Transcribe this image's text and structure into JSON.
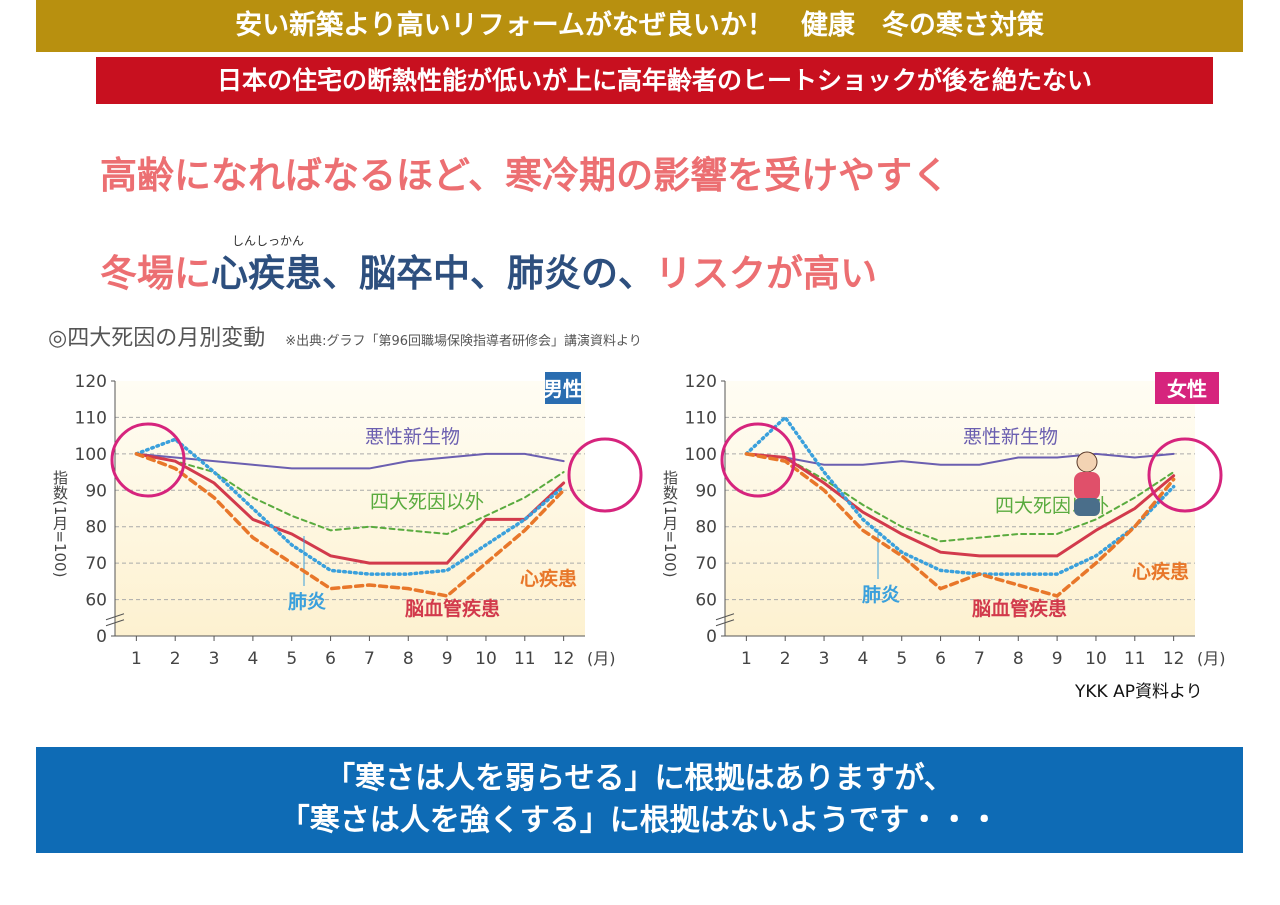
{
  "header": {
    "title": "安い新築より高いリフォームがなぜ良いか！　健康　冬の寒さ対策",
    "subtitle": "日本の住宅の断熱性能が低いが上に高年齢者のヒートショックが後を絶たない"
  },
  "headline": {
    "line1": "高齢になればなるほど、寒冷期の影響を受けやすく",
    "ruby": "しんしっかん",
    "line2": [
      "冬場に",
      "心疾患、脳卒中、肺炎の、",
      "リスクが高い"
    ],
    "line2_colors": [
      "#ec6f72",
      "#2d4f7e",
      "#ec6f72"
    ]
  },
  "caption": {
    "title": "◎四大死因の月別変動",
    "source": "※出典:グラフ「第96回職場保険指導者研修会」講演資料より"
  },
  "chart_data": [
    {
      "type": "line",
      "title": "男性",
      "title_color": "#2a6db0",
      "y_label": "指数(1月=100)",
      "x_unit": "(月)",
      "x": [
        1,
        2,
        3,
        4,
        5,
        6,
        7,
        8,
        9,
        10,
        11,
        12
      ],
      "xlim": [
        0.45,
        12.55
      ],
      "xticks": [
        1,
        2,
        3,
        4,
        5,
        6,
        7,
        8,
        9,
        10,
        11,
        12
      ],
      "ylim": [
        0,
        120
      ],
      "yticks": [
        0,
        60,
        70,
        80,
        90,
        100,
        110,
        120
      ],
      "axis_break": true,
      "grid": true,
      "series": [
        {
          "name": "悪性新生物",
          "color": "#6b5fb0",
          "style": "solid",
          "values": [
            100,
            99,
            98,
            97,
            96,
            96,
            96,
            98,
            99,
            100,
            100,
            98
          ]
        },
        {
          "name": "四大死因以外",
          "color": "#5aab3f",
          "style": "dashed",
          "values": [
            100,
            98,
            95,
            88,
            83,
            79,
            80,
            79,
            78,
            83,
            88,
            95
          ]
        },
        {
          "name": "脳血管疾患",
          "color": "#d23a4c",
          "style": "solid-thick",
          "values": [
            100,
            98,
            92,
            82,
            78,
            72,
            70,
            70,
            70,
            82,
            82,
            92
          ]
        },
        {
          "name": "肺炎",
          "color": "#3aa0dc",
          "style": "dotted",
          "values": [
            100,
            104,
            95,
            85,
            75,
            68,
            67,
            67,
            68,
            75,
            82,
            91
          ]
        },
        {
          "name": "心疾患",
          "color": "#e8772a",
          "style": "dashed-thick",
          "values": [
            100,
            96,
            88,
            77,
            70,
            63,
            64,
            63,
            61,
            70,
            79,
            90
          ]
        }
      ]
    },
    {
      "type": "line",
      "title": "女性",
      "title_color": "#d6247d",
      "y_label": "指数(1月=100)",
      "x_unit": "(月)",
      "x": [
        1,
        2,
        3,
        4,
        5,
        6,
        7,
        8,
        9,
        10,
        11,
        12
      ],
      "xlim": [
        0.45,
        12.55
      ],
      "xticks": [
        1,
        2,
        3,
        4,
        5,
        6,
        7,
        8,
        9,
        10,
        11,
        12
      ],
      "ylim": [
        0,
        120
      ],
      "yticks": [
        0,
        60,
        70,
        80,
        90,
        100,
        110,
        120
      ],
      "axis_break": true,
      "grid": true,
      "series": [
        {
          "name": "悪性新生物",
          "color": "#6b5fb0",
          "style": "solid",
          "values": [
            100,
            99,
            97,
            97,
            98,
            97,
            97,
            99,
            99,
            100,
            99,
            100
          ]
        },
        {
          "name": "四大死因以外",
          "color": "#5aab3f",
          "style": "dashed",
          "values": [
            100,
            99,
            93,
            86,
            80,
            76,
            77,
            78,
            78,
            82,
            88,
            95
          ]
        },
        {
          "name": "脳血管疾患",
          "color": "#d23a4c",
          "style": "solid-thick",
          "values": [
            100,
            99,
            92,
            84,
            78,
            73,
            72,
            72,
            72,
            79,
            85,
            94
          ]
        },
        {
          "name": "肺炎",
          "color": "#3aa0dc",
          "style": "dotted",
          "values": [
            100,
            110,
            95,
            82,
            73,
            68,
            67,
            67,
            67,
            72,
            80,
            91
          ]
        },
        {
          "name": "心疾患",
          "color": "#e8772a",
          "style": "dashed-thick",
          "values": [
            100,
            98,
            90,
            79,
            72,
            63,
            67,
            64,
            61,
            70,
            80,
            93
          ]
        }
      ]
    }
  ],
  "source": "YKK AP資料より",
  "footer": {
    "line1": "「寒さは人を弱らせる」に根拠はありますが、",
    "line2": "「寒さは人を強くする」に根拠はないようです・・・"
  }
}
